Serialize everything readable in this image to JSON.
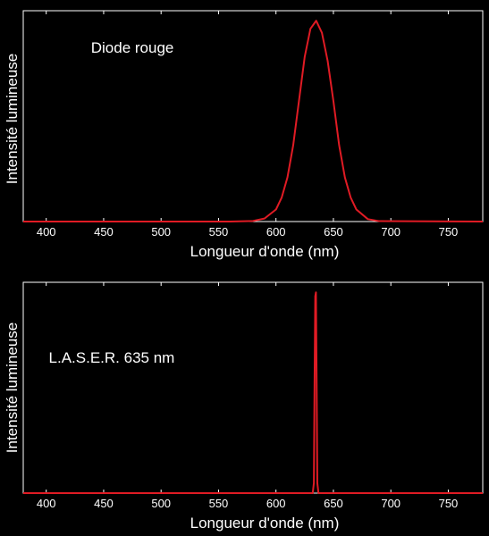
{
  "colors": {
    "background": "#000000",
    "axes": "#ffffff",
    "text": "#ffffff",
    "series": "#e01b24"
  },
  "chart_data": [
    {
      "type": "line",
      "title": "",
      "xlabel": "Longueur d'onde (nm)",
      "ylabel": "Intensité lumineuse",
      "xlim": [
        380,
        780
      ],
      "ylim": [
        0,
        1.05
      ],
      "xticks": [
        400,
        450,
        500,
        550,
        600,
        650,
        700,
        750
      ],
      "y_ticks_shown": false,
      "grid": false,
      "legend": "none",
      "annotations": [
        {
          "text": "Diode rouge",
          "x": 475,
          "y": 0.84
        }
      ],
      "series": [
        {
          "x": [
            380,
            560,
            580,
            590,
            600,
            605,
            610,
            615,
            620,
            625,
            630,
            635,
            640,
            645,
            650,
            655,
            660,
            665,
            670,
            680,
            690,
            780
          ],
          "y": [
            0,
            0,
            0.003,
            0.015,
            0.06,
            0.12,
            0.22,
            0.38,
            0.6,
            0.82,
            0.96,
            1.0,
            0.94,
            0.8,
            0.6,
            0.38,
            0.22,
            0.12,
            0.06,
            0.012,
            0.002,
            0
          ]
        }
      ]
    },
    {
      "type": "line",
      "title": "",
      "xlabel": "Longueur d'onde (nm)",
      "ylabel": "Intensité lumineuse",
      "xlim": [
        380,
        780
      ],
      "ylim": [
        0,
        1.05
      ],
      "xticks": [
        400,
        450,
        500,
        550,
        600,
        650,
        700,
        750
      ],
      "y_ticks_shown": false,
      "grid": false,
      "legend": "none",
      "annotations": [
        {
          "text": "L.A.S.E.R. 635 nm",
          "x": 457,
          "y": 0.65
        }
      ],
      "series": [
        {
          "x": [
            380,
            632,
            633,
            633.6,
            634.2,
            634.8,
            635.4,
            636,
            637,
            780
          ],
          "y": [
            0,
            0,
            0.05,
            0.55,
            0.98,
            1.0,
            0.55,
            0.05,
            0,
            0
          ]
        }
      ]
    }
  ]
}
